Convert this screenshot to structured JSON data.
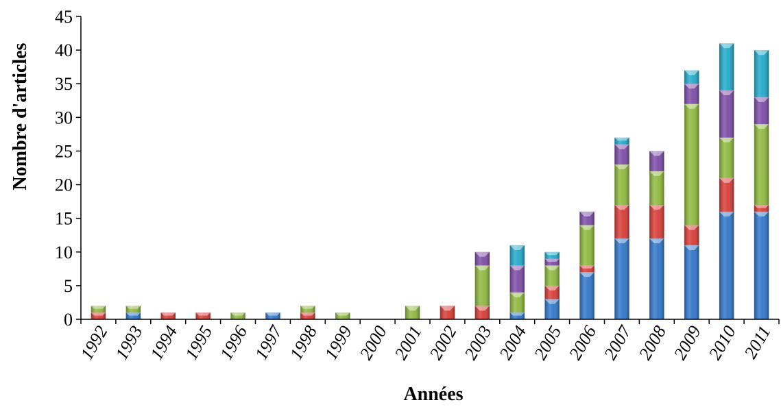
{
  "chart_data": {
    "type": "bar",
    "stacked": true,
    "title": "",
    "xlabel": "Années",
    "ylabel": "Nombre d'articles",
    "ylim": [
      0,
      45
    ],
    "yticks": [
      0,
      5,
      10,
      15,
      20,
      25,
      30,
      35,
      40,
      45
    ],
    "grid": false,
    "legend": "none",
    "categories": [
      "1992",
      "1993",
      "1994",
      "1995",
      "1996",
      "1997",
      "1998",
      "1999",
      "2000",
      "2001",
      "2002",
      "2003",
      "2004",
      "2005",
      "2006",
      "2007",
      "2008",
      "2009",
      "2010",
      "2011"
    ],
    "series": [
      {
        "color": "#2e75c9",
        "values": [
          0,
          1,
          0,
          0,
          0,
          1,
          0,
          0,
          0,
          0,
          0,
          0,
          1,
          3,
          7,
          12,
          12,
          11,
          16,
          16
        ]
      },
      {
        "color": "#d83a34",
        "values": [
          1,
          0,
          1,
          1,
          0,
          0,
          1,
          0,
          0,
          0,
          2,
          2,
          0,
          2,
          1,
          5,
          5,
          3,
          5,
          1
        ]
      },
      {
        "color": "#8db83b",
        "values": [
          1,
          1,
          0,
          0,
          1,
          0,
          1,
          1,
          0,
          2,
          0,
          6,
          3,
          3,
          6,
          6,
          5,
          18,
          6,
          12
        ]
      },
      {
        "color": "#7b4aa6",
        "values": [
          0,
          0,
          0,
          0,
          0,
          0,
          0,
          0,
          0,
          0,
          0,
          2,
          4,
          1,
          2,
          3,
          3,
          3,
          7,
          4
        ]
      },
      {
        "color": "#1fa8c9",
        "values": [
          0,
          0,
          0,
          0,
          0,
          0,
          0,
          0,
          0,
          0,
          0,
          0,
          3,
          1,
          0,
          1,
          0,
          2,
          7,
          7
        ]
      }
    ]
  }
}
